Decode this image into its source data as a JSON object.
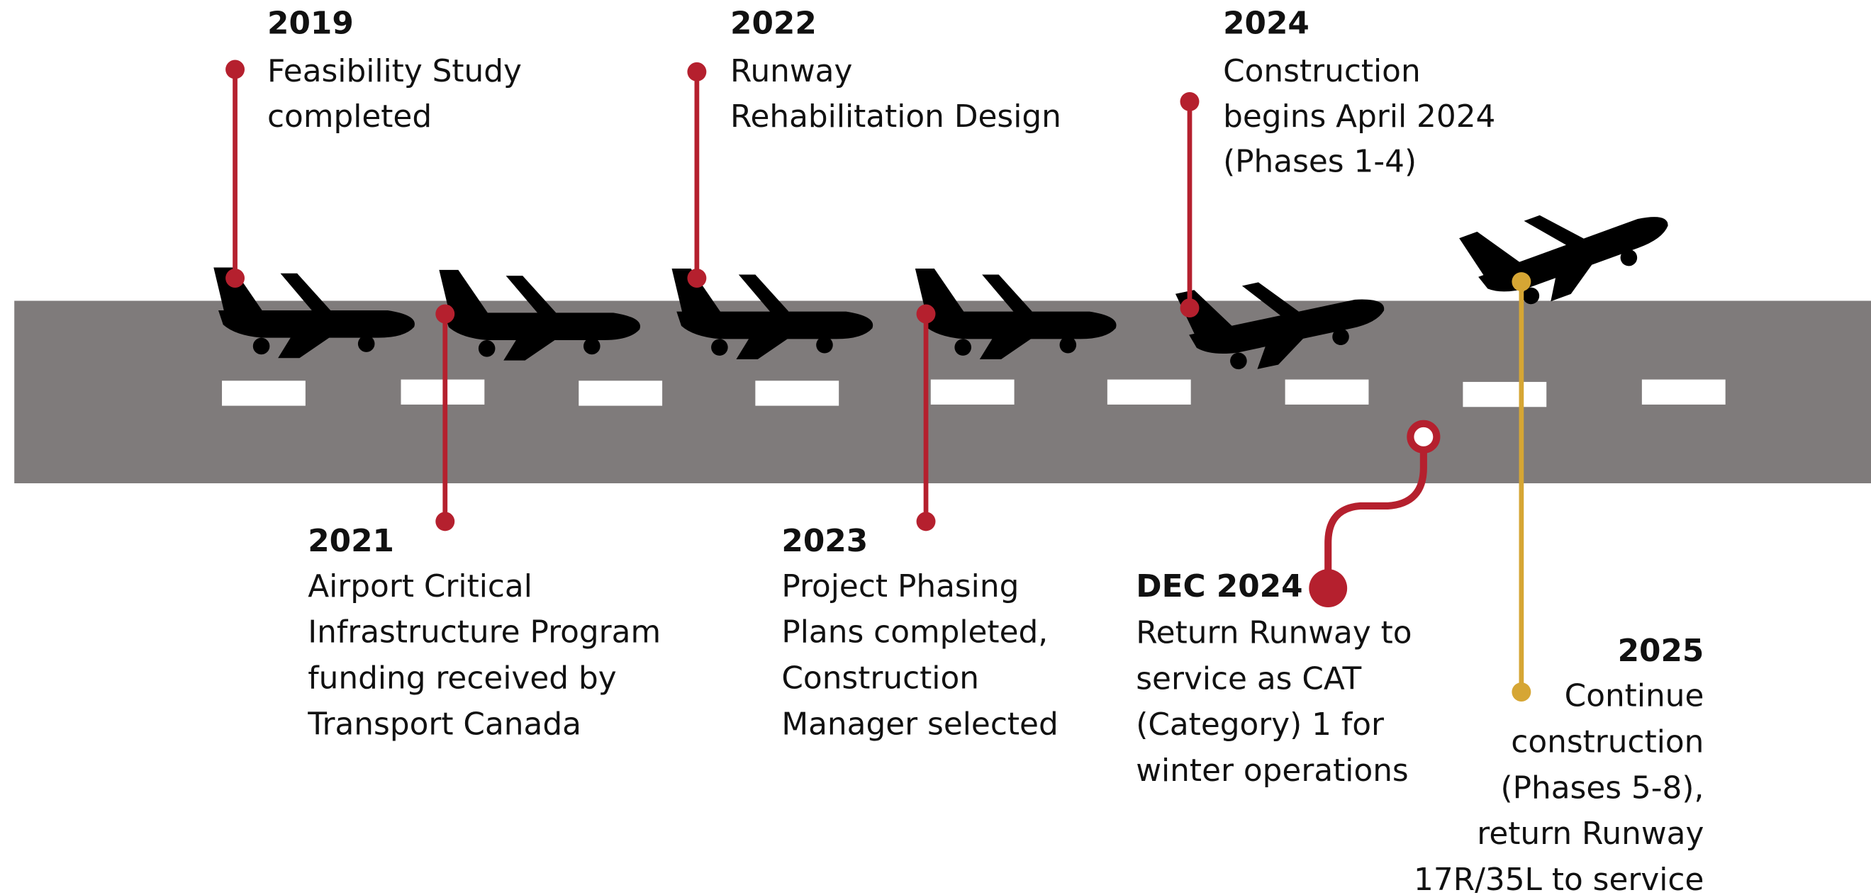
{
  "milestones": [
    {
      "year": "2019",
      "lines": [
        "Feasibility Study",
        "completed"
      ]
    },
    {
      "year": "2021",
      "lines": [
        "Airport Critical",
        "Infrastructure Program",
        "funding received by",
        "Transport Canada"
      ]
    },
    {
      "year": "2022",
      "lines": [
        "Runway",
        "Rehabilitation Design"
      ]
    },
    {
      "year": "2023",
      "lines": [
        "Project Phasing",
        "Plans completed,",
        "Construction",
        "Manager selected"
      ]
    },
    {
      "year": "2024",
      "lines": [
        "Construction",
        "begins April 2024",
        "(Phases 1-4)"
      ]
    },
    {
      "year": "DEC 2024",
      "lines": [
        "Return Runway to",
        "service as CAT",
        "(Category) 1 for",
        "winter operations"
      ]
    },
    {
      "year": "2025",
      "lines": [
        "Continue",
        "construction",
        "(Phases 5-8),",
        "return Runway",
        "17R/35L to service"
      ]
    }
  ]
}
